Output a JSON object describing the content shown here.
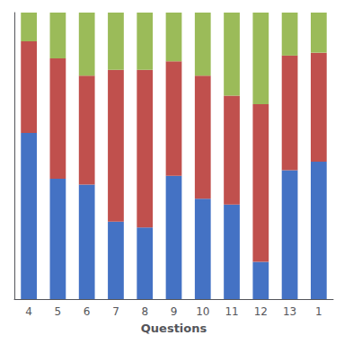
{
  "chart_data": {
    "type": "bar",
    "xlabel": "Questions",
    "categories": [
      "4",
      "5",
      "6",
      "7",
      "8",
      "9",
      "10",
      "11",
      "12",
      "13",
      "1"
    ],
    "series": [
      {
        "color": "#4472C4",
        "values": [
          58,
          42,
          40,
          27,
          25,
          43,
          35,
          33,
          13,
          45,
          48
        ]
      },
      {
        "color": "#C0504D",
        "values": [
          32,
          42,
          38,
          53,
          55,
          40,
          43,
          38,
          55,
          40,
          38
        ]
      },
      {
        "color": "#9BBB59",
        "values": [
          10,
          16,
          22,
          20,
          20,
          17,
          22,
          29,
          32,
          15,
          14
        ]
      }
    ],
    "stacked": true,
    "ylim": [
      0,
      100
    ],
    "tick_labels": "x",
    "grid": false
  }
}
